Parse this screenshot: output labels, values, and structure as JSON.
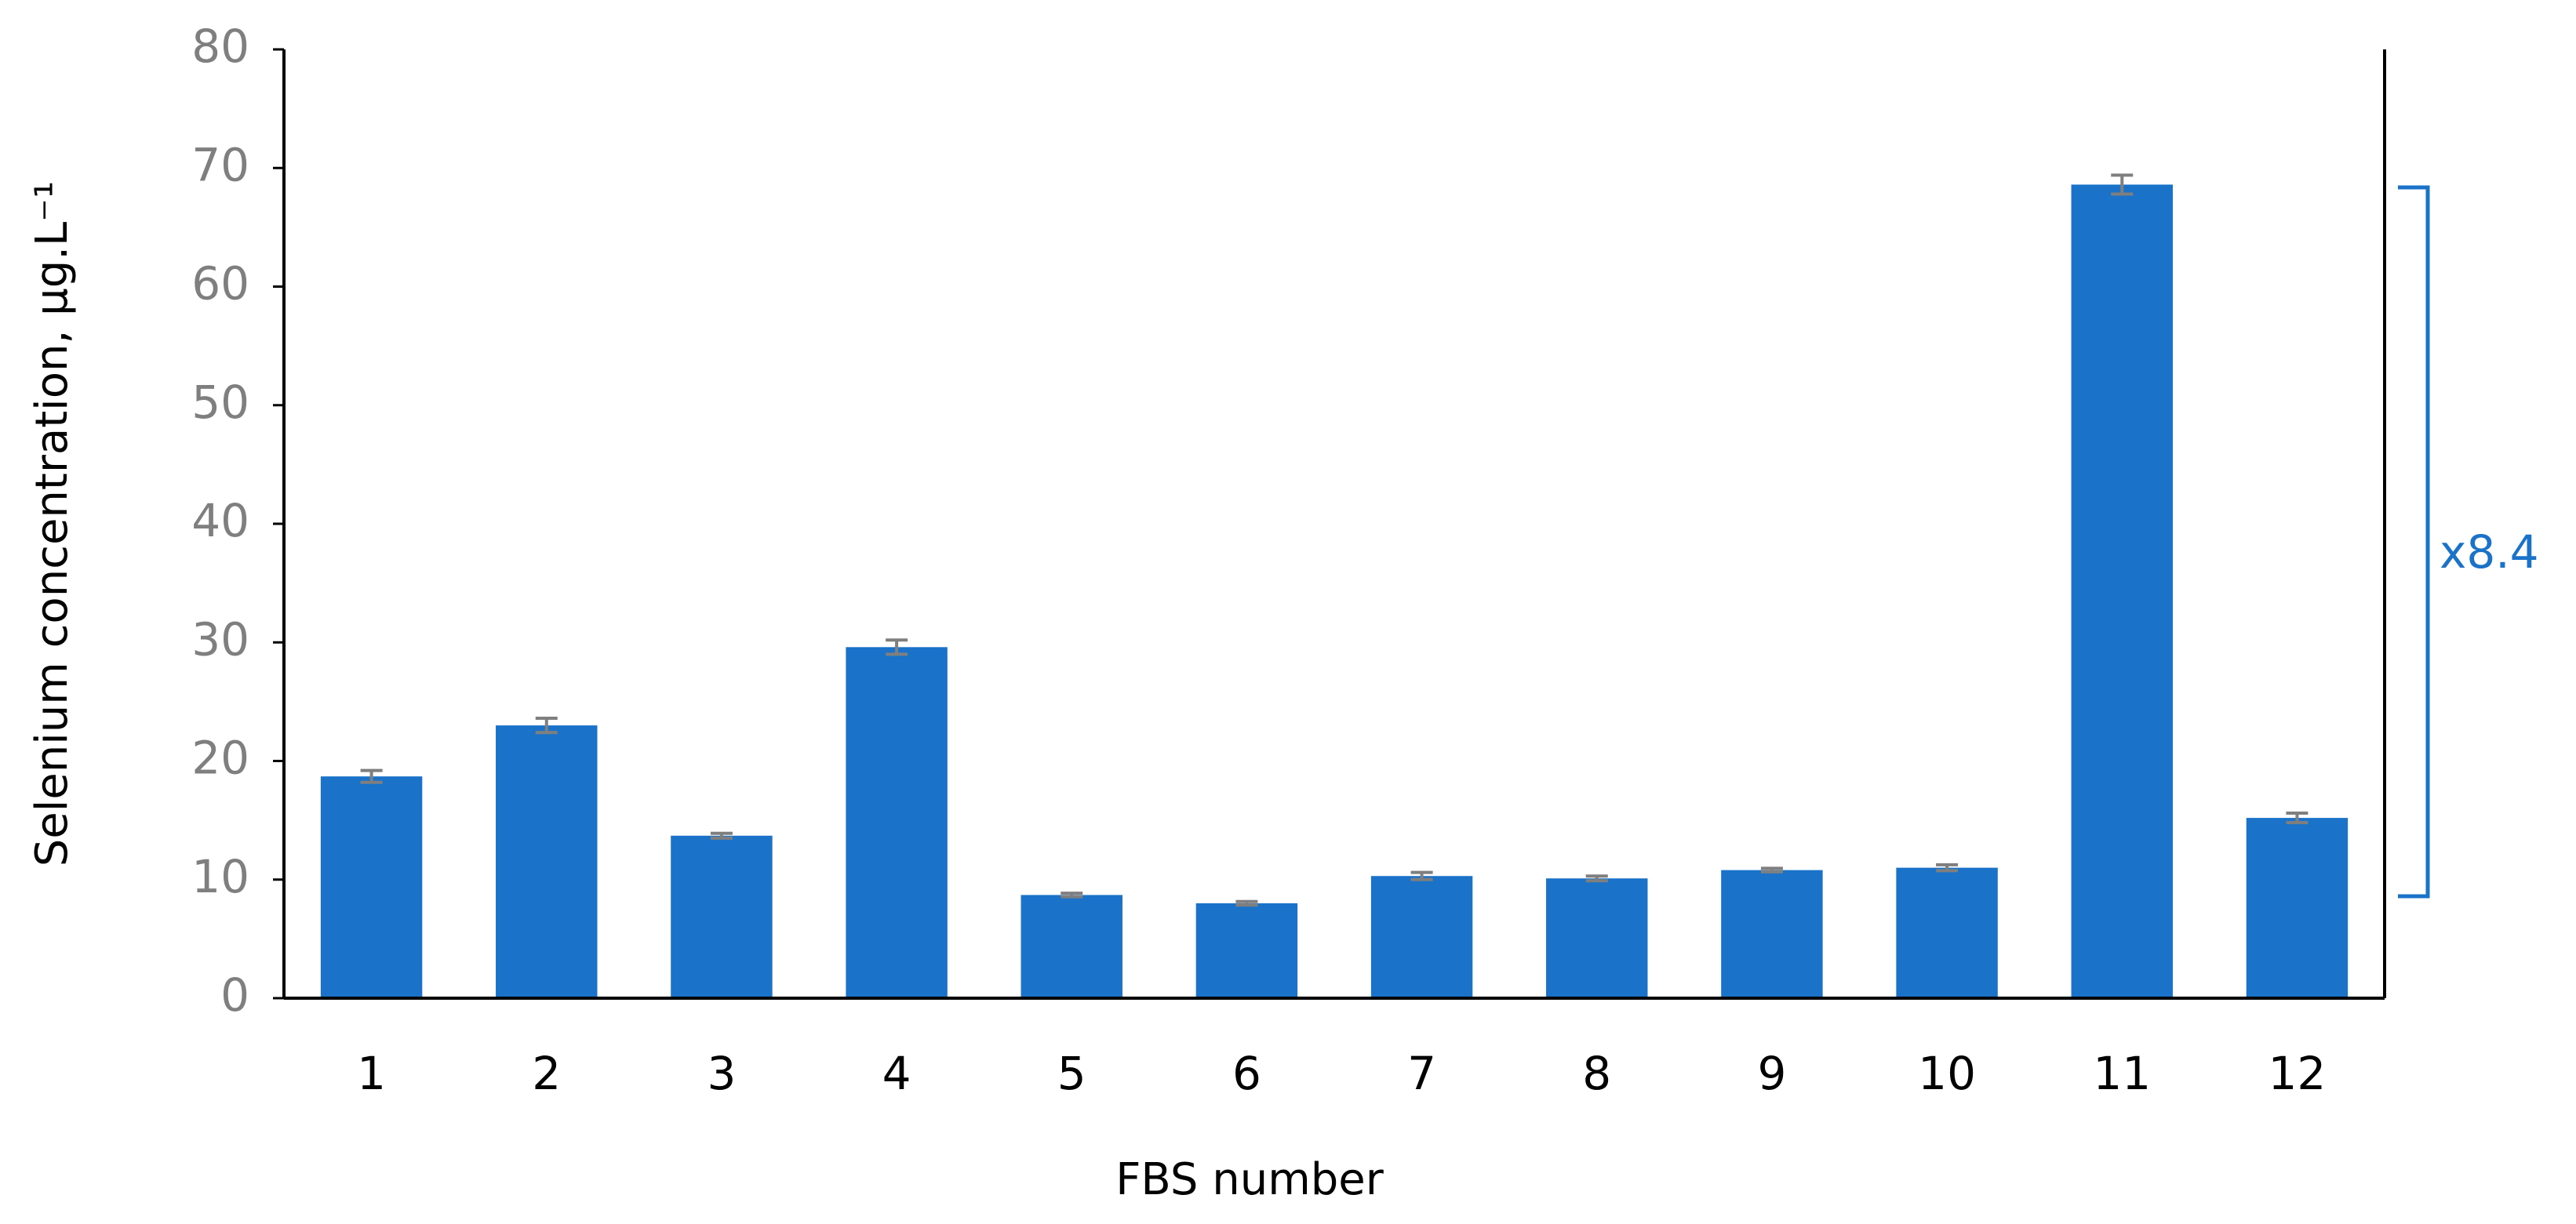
{
  "chart_data": {
    "type": "bar",
    "x_label": "FBS number",
    "y_label": "Selenium concentration, μg.L⁻¹",
    "annotation": "x8.4",
    "categories": [
      "1",
      "2",
      "3",
      "4",
      "5",
      "6",
      "7",
      "8",
      "9",
      "10",
      "11",
      "12"
    ],
    "values": [
      18.7,
      23.0,
      13.7,
      29.6,
      8.7,
      8.0,
      10.3,
      10.1,
      10.8,
      11.0,
      68.6,
      15.2
    ],
    "errors": [
      0.5,
      0.6,
      0.2,
      0.6,
      0.15,
      0.15,
      0.3,
      0.2,
      0.15,
      0.25,
      0.8,
      0.4
    ],
    "color": "#1a73c8",
    "error_color": "#7f7f7f",
    "ylim": [
      0,
      80
    ],
    "yticks": [
      0,
      10,
      20,
      30,
      40,
      50,
      60,
      70,
      80
    ],
    "grid": false
  }
}
